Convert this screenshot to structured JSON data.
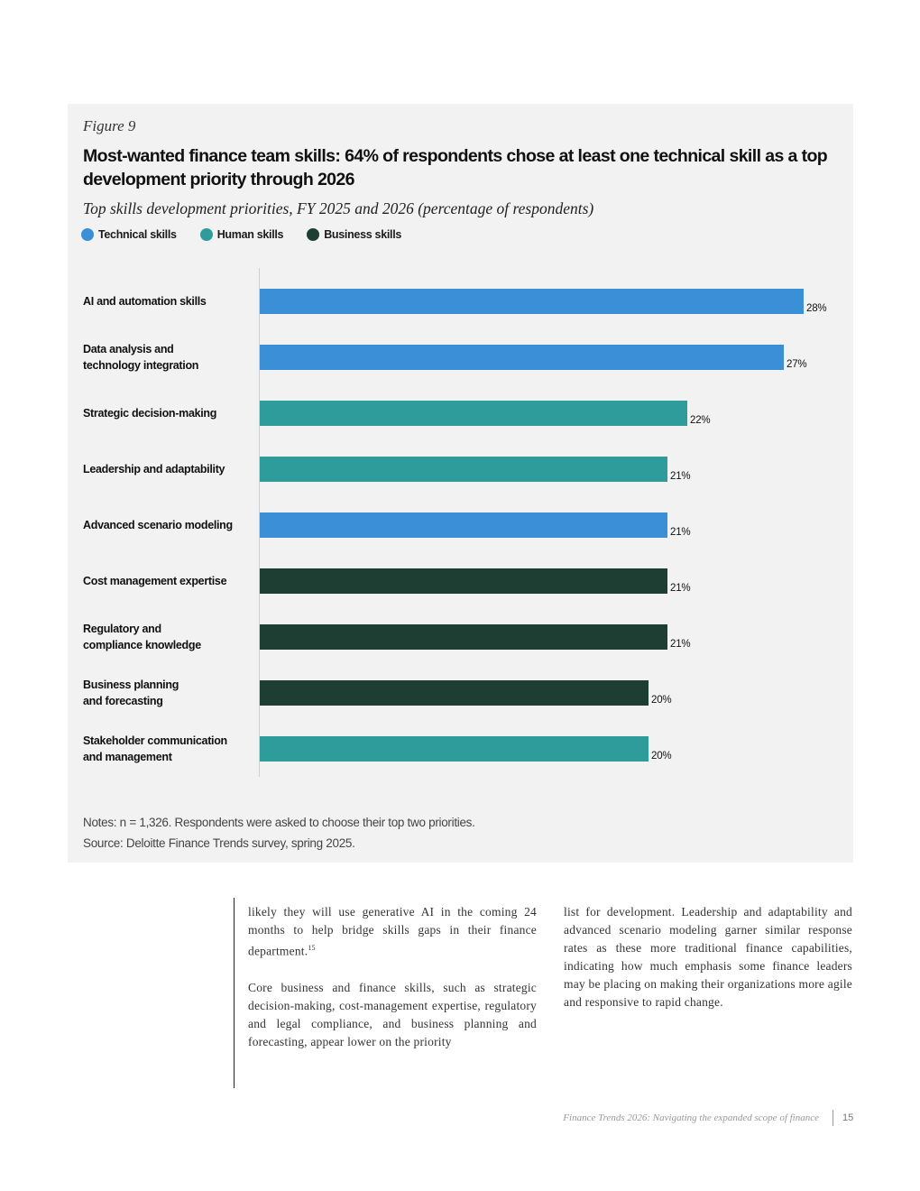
{
  "figure": {
    "label": "Figure 9",
    "title": "Most-wanted finance team skills: 64% of respondents chose at least one technical skill as a top development priority through 2026",
    "subtitle": "Top skills development priorities, FY 2025 and 2026 (percentage of respondents)",
    "notes": "Notes: n = 1,326. Respondents were asked to choose their top two priorities.",
    "source": "Source: Deloitte Finance Trends survey, spring 2025."
  },
  "colors": {
    "technical": "#3a8fd6",
    "human": "#2e9c9a",
    "business": "#1e3d33"
  },
  "chart_data": {
    "type": "bar",
    "orientation": "horizontal",
    "title": "Most-wanted finance team skills: 64% of respondents chose at least one technical skill as a top development priority through 2026",
    "subtitle": "Top skills development priorities, FY 2025 and 2026 (percentage of respondents)",
    "legend": [
      {
        "name": "Technical skills",
        "key": "technical"
      },
      {
        "name": "Human skills",
        "key": "human"
      },
      {
        "name": "Business skills",
        "key": "business"
      }
    ],
    "legend_position": "top-left",
    "xlim": [
      0,
      28
    ],
    "unit": "%",
    "categories": [
      {
        "label": "AI and automation skills",
        "value": 28,
        "group": "technical",
        "text": "28%"
      },
      {
        "label": "Data analysis and\ntechnology integration",
        "value": 27,
        "group": "technical",
        "text": "27%"
      },
      {
        "label": "Strategic decision-making",
        "value": 22,
        "group": "human",
        "text": "22%"
      },
      {
        "label": "Leadership and adaptability",
        "value": 21,
        "group": "human",
        "text": "21%"
      },
      {
        "label": "Advanced scenario modeling",
        "value": 21,
        "group": "technical",
        "text": "21%"
      },
      {
        "label": "Cost management expertise",
        "value": 21,
        "group": "business",
        "text": "21%"
      },
      {
        "label": "Regulatory and\ncompliance knowledge",
        "value": 21,
        "group": "business",
        "text": "21%"
      },
      {
        "label": "Business planning\nand forecasting",
        "value": 20,
        "group": "business",
        "text": "20%"
      },
      {
        "label": "Stakeholder communication\nand management",
        "value": 20,
        "group": "human",
        "text": "20%"
      }
    ]
  },
  "body": {
    "left_p1": "likely they will use generative AI in the coming 24 months to help bridge skills gaps in their finance department.",
    "left_p1_sup": "15",
    "left_p2": "Core business and finance skills, such as strategic decision-making, cost-management expertise, regulatory and legal compliance, and business planning and forecasting, appear lower on the priority",
    "right_p1": "list for development. Leadership and adaptability and advanced scenario modeling garner similar response rates as these more traditional finance capabilities, indicating how much emphasis some finance leaders may be placing on making their organizations more agile and responsive to rapid change."
  },
  "footer": {
    "doc_title": "Finance Trends 2026: Navigating the expanded scope of finance",
    "page_number": "15"
  }
}
